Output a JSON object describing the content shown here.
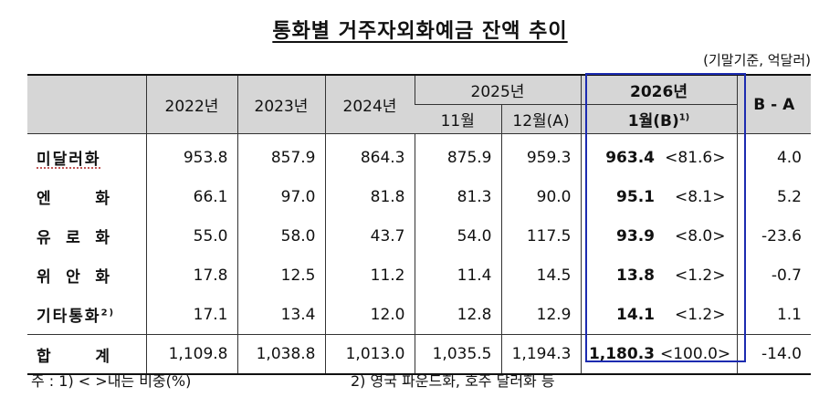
{
  "title": "통화별 거주자외화예금 잔액 추이",
  "unit": "(기말기준, 억달러)",
  "header": {
    "y2022": "2022년",
    "y2023": "2023년",
    "y2024": "2024년",
    "y2025": "2025년",
    "m11": "11월",
    "m12": "12월(A)",
    "y2026": "2026년",
    "m1": "1월(B)",
    "m1_note": "1)",
    "diff": "B - A"
  },
  "rows": [
    {
      "label_a": "미달러화",
      "v2022": "953.8",
      "v2023": "857.9",
      "v2024": "864.3",
      "m11": "875.9",
      "m12": "959.3",
      "m1": "963.4",
      "share": "<81.6>",
      "diff": "4.0"
    },
    {
      "label_a": "엔",
      "label_b": "화",
      "v2022": "66.1",
      "v2023": "97.0",
      "v2024": "81.8",
      "m11": "81.3",
      "m12": "90.0",
      "m1": "95.1",
      "share": "<8.1>",
      "diff": "5.2"
    },
    {
      "label_a": "유",
      "label_m": "로",
      "label_b": "화",
      "v2022": "55.0",
      "v2023": "58.0",
      "v2024": "43.7",
      "m11": "54.0",
      "m12": "117.5",
      "m1": "93.9",
      "share": "<8.0>",
      "diff": "-23.6"
    },
    {
      "label_a": "위",
      "label_m": "안",
      "label_b": "화",
      "v2022": "17.8",
      "v2023": "12.5",
      "v2024": "11.2",
      "m11": "11.4",
      "m12": "14.5",
      "m1": "13.8",
      "share": "<1.2>",
      "diff": "-0.7"
    },
    {
      "label_a": "기타통화",
      "label_note": "2)",
      "v2022": "17.1",
      "v2023": "13.4",
      "v2024": "12.0",
      "m11": "12.8",
      "m12": "12.9",
      "m1": "14.1",
      "share": "<1.2>",
      "diff": "1.1"
    }
  ],
  "total": {
    "label_a": "합",
    "label_b": "계",
    "v2022": "1,109.8",
    "v2023": "1,038.8",
    "v2024": "1,013.0",
    "m11": "1,035.5",
    "m12": "1,194.3",
    "m1": "1,180.3",
    "share": "<100.0>",
    "diff": "-14.0"
  },
  "notes": {
    "n1": "주 : 1) <   >내는 비중(%)",
    "n2": "2) 영국 파운드화, 호주 달러화 등"
  },
  "colors": {
    "highlight_border": "#1c2bb0",
    "header_bg": "#d6d6d6"
  }
}
